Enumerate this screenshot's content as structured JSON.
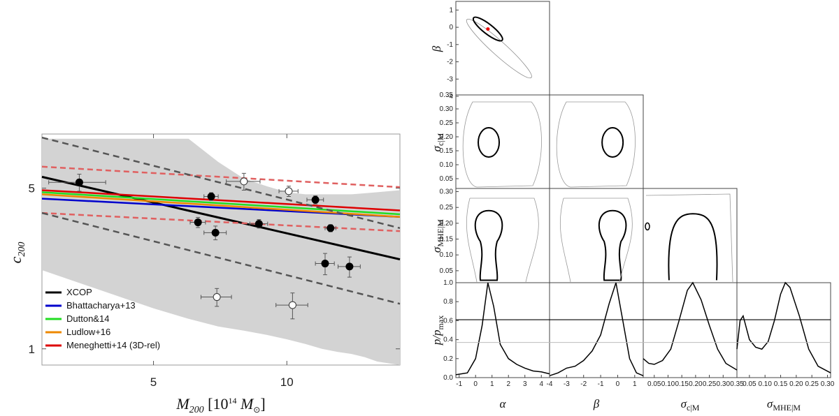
{
  "chart_data": [
    {
      "type": "scatter",
      "ylabel": "c200",
      "xlabel": "M200 [10^14 M⊙]",
      "x_scale": "log",
      "y_scale": "log",
      "xlim": [
        2.8,
        18.0
      ],
      "ylim": [
        0.85,
        8.6
      ],
      "xticks": [
        5,
        10
      ],
      "xtick_labels": [
        "5",
        "10"
      ],
      "yticks": [
        1,
        5
      ],
      "ytick_labels": [
        "1",
        "5"
      ],
      "band": {
        "x": [
          2.8,
          5.0,
          6.0,
          7.0,
          8.0,
          9.0,
          10.0,
          11.0,
          12.0,
          13.0,
          14.0,
          15.0,
          16.0,
          18.0
        ],
        "upper": [
          8.2,
          8.2,
          8.2,
          6.5,
          5.5,
          5.1,
          4.8,
          4.7,
          4.7,
          4.7,
          4.7,
          4.75,
          4.8,
          4.9
        ],
        "lower": [
          2.2,
          1.5,
          1.35,
          1.25,
          1.2,
          1.15,
          1.1,
          1.05,
          1.0,
          0.97,
          0.95,
          0.92,
          0.88,
          0.85
        ]
      },
      "series": [
        {
          "name": "XCOP",
          "color": "#000000",
          "style": "solid",
          "x": [
            2.8,
            18.0
          ],
          "y": [
            5.6,
            2.45
          ]
        },
        {
          "name": "Bhattacharya+13",
          "color": "#0000cc",
          "style": "solid",
          "x": [
            2.8,
            18.0
          ],
          "y": [
            4.5,
            3.75
          ]
        },
        {
          "name": "Dutton&14",
          "color": "#22dd22",
          "style": "solid",
          "x": [
            2.8,
            18.0
          ],
          "y": [
            4.8,
            3.85
          ]
        },
        {
          "name": "Ludlow+16",
          "color": "#ee8800",
          "style": "solid",
          "x": [
            2.8,
            18.0
          ],
          "y": [
            4.7,
            3.75
          ]
        },
        {
          "name": "Meneghetti+14 (3D-rel)",
          "color": "#dd0000",
          "style": "solid",
          "x": [
            2.8,
            18.0
          ],
          "y": [
            4.9,
            4.0
          ]
        },
        {
          "color": "#e06060",
          "style": "dashed",
          "x": [
            2.8,
            18.0
          ],
          "y": [
            6.2,
            5.05
          ]
        },
        {
          "color": "#e06060",
          "style": "dashed",
          "x": [
            2.8,
            18.0
          ],
          "y": [
            3.9,
            3.25
          ]
        },
        {
          "color": "#555555",
          "style": "dashed",
          "x": [
            2.8,
            18.0
          ],
          "y": [
            8.3,
            3.35
          ]
        },
        {
          "color": "#555555",
          "style": "dashed",
          "x": [
            2.8,
            18.0
          ],
          "y": [
            3.9,
            1.57
          ]
        }
      ],
      "points_filled": [
        {
          "x": 3.4,
          "y": 5.3,
          "xerr": 0.5,
          "yerr": 0.45
        },
        {
          "x": 6.75,
          "y": 4.6,
          "xerr": 0.25,
          "yerr": 0.18
        },
        {
          "x": 6.3,
          "y": 3.55,
          "xerr": 0.25,
          "yerr": 0.18
        },
        {
          "x": 6.9,
          "y": 3.2,
          "xerr": 0.4,
          "yerr": 0.22
        },
        {
          "x": 8.65,
          "y": 3.5,
          "xerr": 0.4,
          "yerr": 0.15
        },
        {
          "x": 11.6,
          "y": 4.45,
          "xerr": 0.5,
          "yerr": 0.18
        },
        {
          "x": 12.55,
          "y": 3.35,
          "xerr": 0.35,
          "yerr": 0.12
        },
        {
          "x": 12.2,
          "y": 2.35,
          "xerr": 0.6,
          "yerr": 0.25
        },
        {
          "x": 13.85,
          "y": 2.28,
          "xerr": 0.8,
          "yerr": 0.23
        }
      ],
      "points_open": [
        {
          "x": 8.0,
          "y": 5.35,
          "xerr": 0.7,
          "yerr": 0.45
        },
        {
          "x": 10.1,
          "y": 4.85,
          "xerr": 0.5,
          "yerr": 0.25
        },
        {
          "x": 6.95,
          "y": 1.68,
          "xerr": 0.55,
          "yerr": 0.15
        },
        {
          "x": 10.3,
          "y": 1.55,
          "xerr": 0.85,
          "yerr": 0.2
        }
      ],
      "legend": {
        "placement": "bottom-left"
      }
    },
    {
      "type": "corner",
      "parameters": [
        "α",
        "β",
        "σc|M",
        "σMHE|M"
      ],
      "ranges": [
        [
          -1.2,
          4.5
        ],
        [
          -4.0,
          1.5
        ],
        [
          0.01,
          0.35
        ],
        [
          0.01,
          0.31
        ]
      ],
      "ticks": [
        {
          "values": [
            -1,
            0,
            1,
            2,
            3,
            4
          ],
          "labels": [
            "-1",
            "0",
            "1",
            "2",
            "3",
            "4"
          ]
        },
        {
          "values": [
            -4,
            -3,
            -2,
            -1,
            0,
            1
          ],
          "labels": [
            "-4",
            "-3",
            "-2",
            "-1",
            "0",
            "1"
          ]
        },
        {
          "values": [
            0.05,
            0.1,
            0.15,
            0.2,
            0.25,
            0.3,
            0.35
          ],
          "labels": [
            "0.05",
            "0.10",
            "0.15",
            "0.20",
            "0.25",
            "0.30",
            "0.35"
          ]
        },
        {
          "values": [
            0.05,
            0.1,
            0.15,
            0.2,
            0.25,
            0.3
          ],
          "labels": [
            "0.05",
            "0.10",
            "0.15",
            "0.20",
            "0.25",
            "0.30"
          ]
        }
      ],
      "pdf_ylabel": "p/pmax",
      "pdf_ylim": [
        0,
        1.0
      ],
      "pdf_yticks": [
        0,
        0.2,
        0.4,
        0.6,
        0.8,
        1.0
      ],
      "pdf_ytick_labels": [
        "0.0",
        "0.2",
        "0.4",
        "0.6",
        "0.8",
        "1.0"
      ],
      "pdf_reference_lines": [
        0.61,
        0.37
      ],
      "best_fit": {
        "alpha": 0.75,
        "beta": -0.1
      },
      "marginals": [
        {
          "x": [
            -1.2,
            -0.5,
            0.0,
            0.4,
            0.75,
            1.1,
            1.5,
            2.0,
            2.5,
            3.0,
            3.5,
            4.0,
            4.5
          ],
          "y": [
            0.03,
            0.05,
            0.2,
            0.55,
            1.0,
            0.75,
            0.35,
            0.2,
            0.14,
            0.1,
            0.07,
            0.06,
            0.04
          ]
        },
        {
          "x": [
            -4.0,
            -3.5,
            -3.0,
            -2.5,
            -2.0,
            -1.5,
            -1.0,
            -0.5,
            -0.1,
            0.3,
            0.7,
            1.1,
            1.5
          ],
          "y": [
            0.02,
            0.05,
            0.1,
            0.12,
            0.18,
            0.28,
            0.45,
            0.78,
            1.0,
            0.6,
            0.2,
            0.05,
            0.02
          ]
        },
        {
          "x": [
            0.01,
            0.03,
            0.05,
            0.08,
            0.11,
            0.14,
            0.17,
            0.19,
            0.22,
            0.25,
            0.28,
            0.31,
            0.35
          ],
          "y": [
            0.2,
            0.15,
            0.14,
            0.18,
            0.3,
            0.6,
            0.92,
            1.0,
            0.82,
            0.55,
            0.3,
            0.15,
            0.08
          ]
        },
        {
          "x": [
            0.01,
            0.02,
            0.03,
            0.05,
            0.07,
            0.09,
            0.11,
            0.13,
            0.15,
            0.165,
            0.18,
            0.21,
            0.24,
            0.27,
            0.31
          ],
          "y": [
            0.3,
            0.6,
            0.65,
            0.4,
            0.32,
            0.3,
            0.38,
            0.6,
            0.88,
            1.0,
            0.95,
            0.65,
            0.3,
            0.12,
            0.05
          ]
        }
      ],
      "contours_68": [
        {
          "pair": [
            "α",
            "β"
          ],
          "center": [
            0.75,
            -0.1
          ],
          "shape": "tilted-ellipse"
        },
        {
          "pair": [
            "α",
            "σc|M"
          ],
          "center": [
            0.8,
            0.18
          ],
          "shape": "ellipse"
        },
        {
          "pair": [
            "β",
            "σc|M"
          ],
          "center": [
            -0.3,
            0.18
          ],
          "shape": "ellipse"
        },
        {
          "pair": [
            "α",
            "σMHE|M"
          ],
          "center": [
            0.8,
            0.15
          ],
          "shape": "keyhole"
        },
        {
          "pair": [
            "β",
            "σMHE|M"
          ],
          "center": [
            -0.3,
            0.15
          ],
          "shape": "keyhole"
        },
        {
          "pair": [
            "σc|M",
            "σMHE|M"
          ],
          "center": [
            0.19,
            0.15
          ],
          "shape": "arch"
        }
      ]
    }
  ]
}
